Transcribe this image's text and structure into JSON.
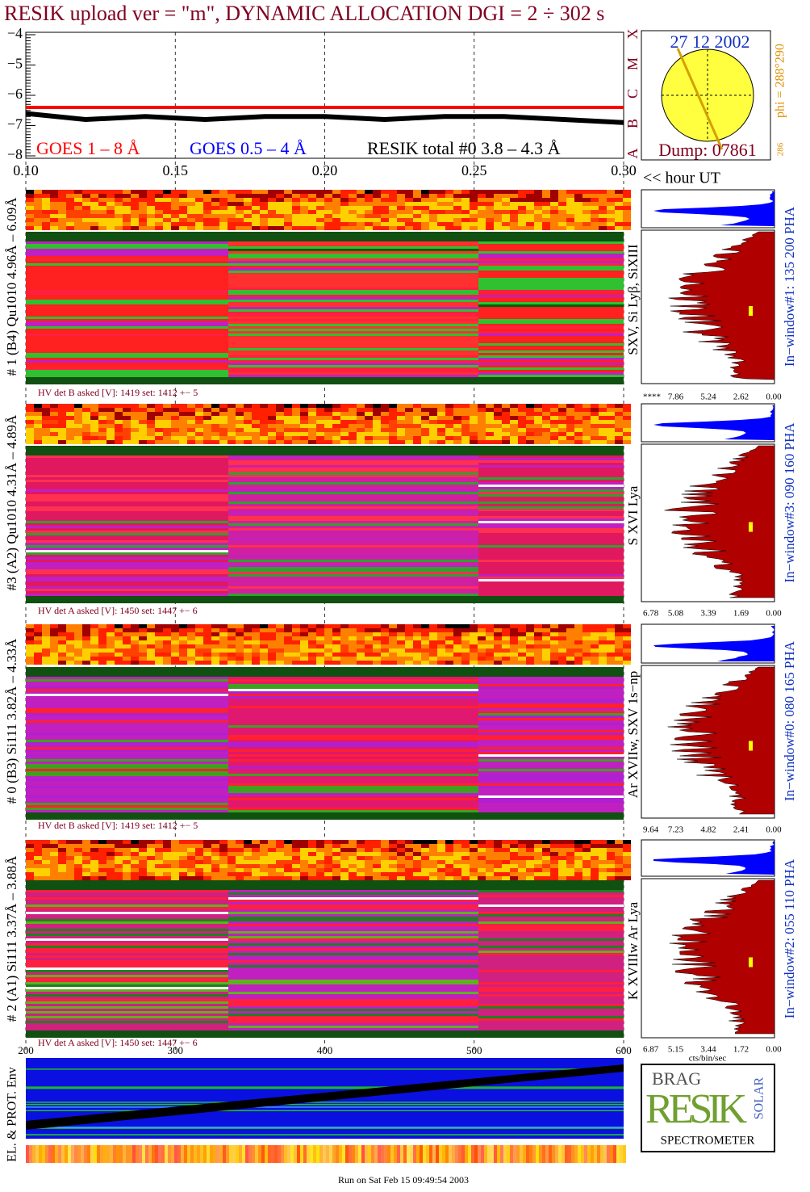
{
  "header": {
    "title": "RESIK upload ver = \"m\", DYNAMIC ALLOCATION  DGI =   2 ÷ 302 s"
  },
  "chart_data": [
    {
      "type": "line",
      "x": [
        0.1,
        0.12,
        0.14,
        0.16,
        0.18,
        0.2,
        0.22,
        0.24,
        0.26,
        0.28,
        0.3
      ],
      "series": [
        {
          "name": "GOES 1 – 8 Å",
          "color": "#ff0000",
          "values": [
            -6.4,
            -6.4,
            -6.4,
            -6.4,
            -6.4,
            -6.4,
            -6.4,
            -6.4,
            -6.4,
            -6.4,
            -6.4
          ]
        },
        {
          "name": "GOES 0.5 – 4 Å",
          "color": "#0000ff",
          "values": [
            null,
            null,
            null,
            null,
            null,
            null,
            null,
            null,
            null,
            null,
            null
          ]
        },
        {
          "name": "RESIK total #0  3.8 – 4.3 Å",
          "color": "#000000",
          "values": [
            -6.6,
            -6.8,
            -6.7,
            -6.8,
            -6.7,
            -6.7,
            -6.8,
            -6.7,
            -6.7,
            -6.8,
            -6.9
          ]
        }
      ],
      "xlim": [
        0.1,
        0.3
      ],
      "xticks": [
        {
          "value": 0.1,
          "label": "0.10"
        },
        0.15,
        {
          "value": 0.2,
          "label": "0.20"
        },
        0.25,
        {
          "value": 0.3,
          "label": "0.30"
        }
      ],
      "ylim": [
        -8,
        -4
      ],
      "yticks": [
        {
          "value": -8,
          "label": "−8"
        },
        {
          "value": -7,
          "label": "−7"
        },
        {
          "value": -6,
          "label": "−6"
        },
        {
          "value": -5,
          "label": "−5"
        },
        {
          "value": -4,
          "label": "−4"
        }
      ],
      "xlabel": "<< hour UT",
      "grid": true
    }
  ],
  "orbit": {
    "date": "27 12 2002",
    "dump": "Dump: 07861",
    "phi": "phi = 288°290",
    "phi_low": "286",
    "letters": [
      "X",
      "M",
      "C",
      "B",
      "A"
    ]
  },
  "panels": [
    {
      "label": "# 1 (B4) Qu1010 4.96Å – 6.09Å",
      "lines": "SXV, Si Lyβ, SiXIII",
      "window": "In−window#1:  135 200 PHA",
      "hv": "HV det B asked [V]:  1419 set:  1412 +−   5",
      "pha_ticks": [
        "****",
        "7.86",
        "5.24",
        "2.62",
        "0.00"
      ]
    },
    {
      "label": "#3 (A2) Qu1010  4.31Å – 4.89Å",
      "lines": "S XVI Lya",
      "window": "In−window#3:  090 160 PHA",
      "hv": "HV det A asked [V]:  1450 set:  1447 +−   6",
      "pha_ticks": [
        "6.78",
        "5.08",
        "3.39",
        "1.69",
        "0.00"
      ]
    },
    {
      "label": "# 0 (B3) Si111  3.82Å – 4.33Å",
      "lines": "Ar XVIIw, SXV 1s−np",
      "window": "In−window#0:  080 165 PHA",
      "hv": "HV det B asked [V]:  1419 set:  1412 +−   5",
      "pha_ticks": [
        "9.64",
        "7.23",
        "4.82",
        "2.41",
        "0.00"
      ]
    },
    {
      "label": "# 2 (A1) Si111  3.37Å – 3.88Å",
      "lines": "K XVIIIw  Ar Lya",
      "window": "In−window#2:  055 110 PHA",
      "hv": "HV det A asked [V]:  1450 set:  1447 +−   6",
      "pha_ticks": [
        "6.87",
        "5.15",
        "3.44",
        "1.72",
        "0.00"
      ]
    }
  ],
  "channel_axis": {
    "ticks": [
      "200",
      "300",
      "400",
      "500",
      "600"
    ],
    "unit": "cts/bin/sec"
  },
  "env_label": "EL. & PROT. Env",
  "logo": {
    "top": "BRAG",
    "mid": "RESIK",
    "side": "SOLAR",
    "bottom": "SPECTROMETER"
  },
  "footer": "Run on Sat Feb 15 09:49:54 2003"
}
